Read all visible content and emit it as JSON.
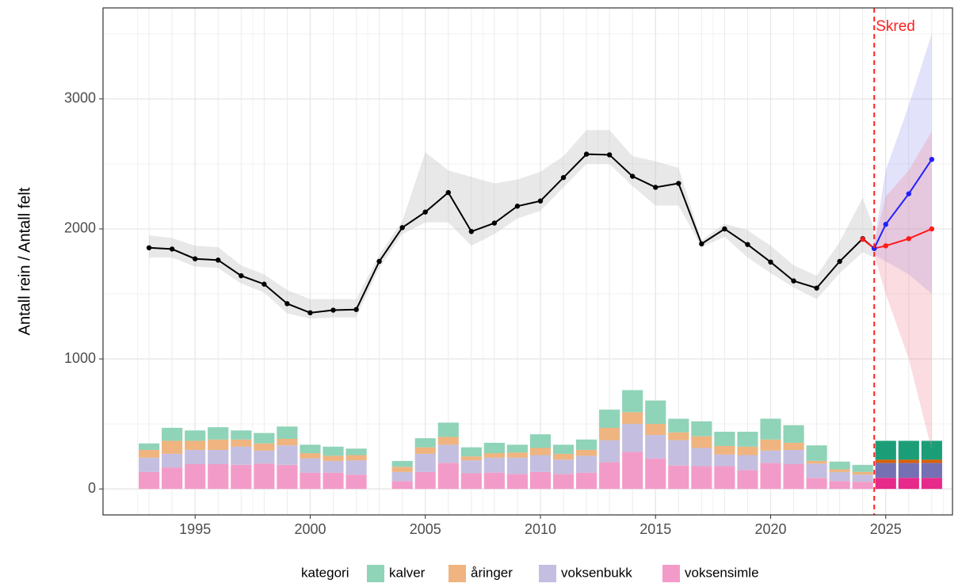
{
  "chart_data": {
    "type": "combo",
    "y_label": "Antall rein / Antall felt",
    "xlim": [
      1991,
      2027.9
    ],
    "ylim": [
      -200,
      3700
    ],
    "xticks": [
      1995,
      2000,
      2005,
      2010,
      2015,
      2020,
      2025
    ],
    "yticks": [
      0,
      1000,
      2000,
      3000
    ],
    "xminor": [
      1992.5,
      1997.5,
      2002.5,
      2007.5,
      2012.5,
      2017.5,
      2022.5,
      2027.5
    ],
    "yminor": [
      500,
      1500,
      2500,
      3500
    ],
    "grid": true,
    "legend_title": "kategori",
    "legend_position": "bottom",
    "vline": {
      "x": 2024.5,
      "label": "Skred",
      "color": "#ff2020"
    },
    "bar_x": [
      1993,
      1994,
      1995,
      1996,
      1997,
      1998,
      1999,
      2000,
      2001,
      2002,
      2003,
      2004,
      2005,
      2006,
      2007,
      2008,
      2009,
      2010,
      2011,
      2012,
      2013,
      2014,
      2015,
      2016,
      2017,
      2018,
      2019,
      2020,
      2021,
      2022,
      2023,
      2024,
      2025,
      2026,
      2027
    ],
    "forecast_from": 2025,
    "bar_series": [
      {
        "name": "voksensimle",
        "color": "#f39bc8",
        "forecast_color": "#e7298a",
        "values": [
          130,
          165,
          190,
          190,
          185,
          195,
          185,
          125,
          125,
          110,
          null,
          60,
          130,
          200,
          120,
          125,
          115,
          130,
          115,
          125,
          205,
          285,
          235,
          180,
          175,
          175,
          145,
          200,
          190,
          85,
          60,
          55,
          85,
          85,
          85
        ]
      },
      {
        "name": "voksenbukk",
        "color": "#c4bfe0",
        "forecast_color": "#7570b3",
        "values": [
          110,
          105,
          110,
          110,
          140,
          100,
          150,
          110,
          90,
          110,
          null,
          70,
          140,
          140,
          100,
          115,
          125,
          130,
          110,
          130,
          170,
          215,
          180,
          195,
          140,
          90,
          115,
          95,
          110,
          110,
          70,
          55,
          115,
          115,
          115
        ]
      },
      {
        "name": "åringer",
        "color": "#efb47f",
        "forecast_color": "#d95f02",
        "values": [
          60,
          100,
          70,
          80,
          55,
          55,
          50,
          40,
          40,
          40,
          null,
          40,
          50,
          60,
          30,
          35,
          40,
          55,
          45,
          45,
          95,
          90,
          85,
          60,
          90,
          65,
          65,
          85,
          55,
          20,
          20,
          20,
          25,
          25,
          25
        ]
      },
      {
        "name": "kalver",
        "color": "#8fd3b8",
        "forecast_color": "#1b9e77",
        "values": [
          50,
          100,
          80,
          95,
          70,
          80,
          95,
          65,
          70,
          50,
          null,
          45,
          70,
          110,
          70,
          80,
          60,
          105,
          70,
          80,
          140,
          170,
          180,
          105,
          115,
          110,
          115,
          160,
          135,
          120,
          60,
          55,
          145,
          145,
          145
        ]
      }
    ],
    "bands": [
      {
        "color": "#bdbdbd",
        "opacity": 0.35,
        "x": [
          1993,
          1994,
          1995,
          1996,
          1997,
          1998,
          1999,
          2000,
          2001,
          2002,
          2003,
          2004,
          2005,
          2006,
          2007,
          2008,
          2009,
          2010,
          2011,
          2012,
          2013,
          2014,
          2015,
          2016,
          2017,
          2018,
          2019,
          2020,
          2021,
          2022,
          2023,
          2024,
          2024.5
        ],
        "lower": [
          1780,
          1780,
          1710,
          1700,
          1580,
          1510,
          1350,
          1310,
          1320,
          1320,
          1700,
          1960,
          2050,
          2050,
          1870,
          1960,
          2080,
          2140,
          2320,
          2500,
          2500,
          2330,
          2180,
          2180,
          1860,
          1940,
          1780,
          1660,
          1550,
          1460,
          1660,
          1820,
          1780
        ],
        "upper": [
          1950,
          1930,
          1870,
          1860,
          1720,
          1650,
          1530,
          1460,
          1460,
          1460,
          1800,
          2060,
          2590,
          2450,
          2400,
          2350,
          2380,
          2440,
          2560,
          2760,
          2760,
          2560,
          2520,
          2470,
          1910,
          2040,
          1990,
          1870,
          1720,
          1640,
          1900,
          2240,
          2000
        ]
      },
      {
        "color": "#8c8cf0",
        "opacity": 0.25,
        "x": [
          2024.5,
          2025,
          2026,
          2027
        ],
        "lower": [
          1800,
          1750,
          1650,
          1500
        ],
        "upper": [
          1900,
          2450,
          2950,
          3500
        ]
      },
      {
        "color": "#f08c9c",
        "opacity": 0.3,
        "x": [
          2024.5,
          2025,
          2026,
          2027
        ],
        "lower": [
          1800,
          1500,
          1000,
          300
        ],
        "upper": [
          1900,
          2250,
          2450,
          2750
        ]
      }
    ],
    "lines": [
      {
        "color": "#000000",
        "x": [
          1993,
          1994,
          1995,
          1996,
          1997,
          1998,
          1999,
          2000,
          2001,
          2002,
          2003,
          2004,
          2005,
          2006,
          2007,
          2008,
          2009,
          2010,
          2011,
          2012,
          2013,
          2014,
          2015,
          2016,
          2017,
          2018,
          2019,
          2020,
          2021,
          2022,
          2023,
          2024,
          2024.5
        ],
        "values": [
          1855,
          1845,
          1770,
          1760,
          1640,
          1575,
          1425,
          1355,
          1375,
          1380,
          1750,
          2010,
          2130,
          2280,
          1980,
          2045,
          2175,
          2215,
          2395,
          2575,
          2570,
          2405,
          2320,
          2350,
          1885,
          2000,
          1880,
          1745,
          1600,
          1545,
          1750,
          1925,
          1850
        ]
      },
      {
        "color": "#ff1a1a",
        "x": [
          2024,
          2024.5,
          2025,
          2026,
          2027
        ],
        "values": [
          1920,
          1850,
          1870,
          1925,
          2000
        ]
      },
      {
        "color": "#2020ff",
        "x": [
          2024.5,
          2025,
          2026,
          2027
        ],
        "values": [
          1850,
          2035,
          2270,
          2535
        ]
      }
    ]
  }
}
